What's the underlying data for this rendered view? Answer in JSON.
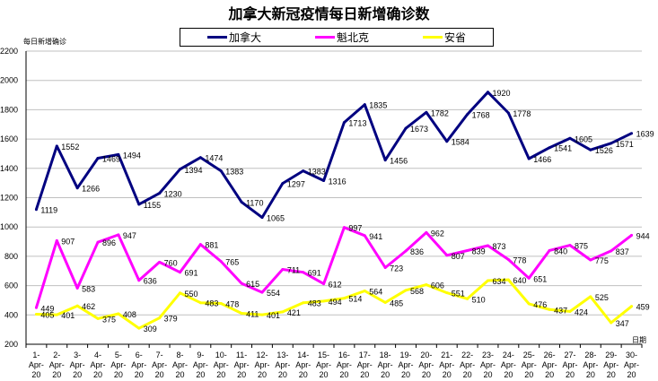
{
  "chart_data": {
    "type": "line",
    "title": "加拿大新冠疫情每日新增确诊数",
    "ylabel": "每日新增确诊",
    "xlabel": "日期",
    "ylim": [
      200,
      2200
    ],
    "yticks": [
      200,
      400,
      600,
      800,
      1000,
      1200,
      1400,
      1600,
      1800,
      2000,
      2200
    ],
    "grid": true,
    "legend_position": "top",
    "categories": [
      "1-Apr-20",
      "2-Apr-20",
      "3-Apr-20",
      "4-Apr-20",
      "5-Apr-20",
      "6-Apr-20",
      "7-Apr-20",
      "8-Apr-20",
      "9-Apr-20",
      "10-Apr-20",
      "11-Apr-20",
      "12-Apr-20",
      "13-Apr-20",
      "14-Apr-20",
      "15-Apr-20",
      "16-Apr-20",
      "17-Apr-20",
      "18-Apr-20",
      "19-Apr-20",
      "20-Apr-20",
      "21-Apr-20",
      "22-Apr-20",
      "23-Apr-20",
      "24-Apr-20",
      "25-Apr-20",
      "26-Apr-20",
      "27-Apr-20",
      "28-Apr-20",
      "29-Apr-20",
      "30-Apr-20"
    ],
    "series": [
      {
        "name": "加拿大",
        "color": "#000080",
        "values": [
          1119,
          1552,
          1266,
          1469,
          1494,
          1155,
          1230,
          1394,
          1474,
          1383,
          1170,
          1065,
          1297,
          1383,
          1316,
          1713,
          1835,
          1456,
          1673,
          1782,
          1584,
          1768,
          1920,
          1778,
          1466,
          1541,
          1605,
          1526,
          1571,
          1639
        ]
      },
      {
        "name": "魁北克",
        "color": "#FF00FF",
        "values": [
          449,
          907,
          583,
          896,
          947,
          636,
          760,
          691,
          881,
          765,
          615,
          554,
          711,
          691,
          612,
          997,
          941,
          723,
          836,
          962,
          807,
          839,
          873,
          778,
          651,
          840,
          875,
          775,
          837,
          944
        ]
      },
      {
        "name": "安省",
        "color": "#FFFF00",
        "values": [
          405,
          401,
          462,
          375,
          408,
          309,
          379,
          550,
          483,
          478,
          411,
          401,
          421,
          483,
          494,
          514,
          564,
          485,
          568,
          606,
          551,
          510,
          634,
          640,
          476,
          437,
          424,
          525,
          347,
          459
        ]
      }
    ]
  }
}
